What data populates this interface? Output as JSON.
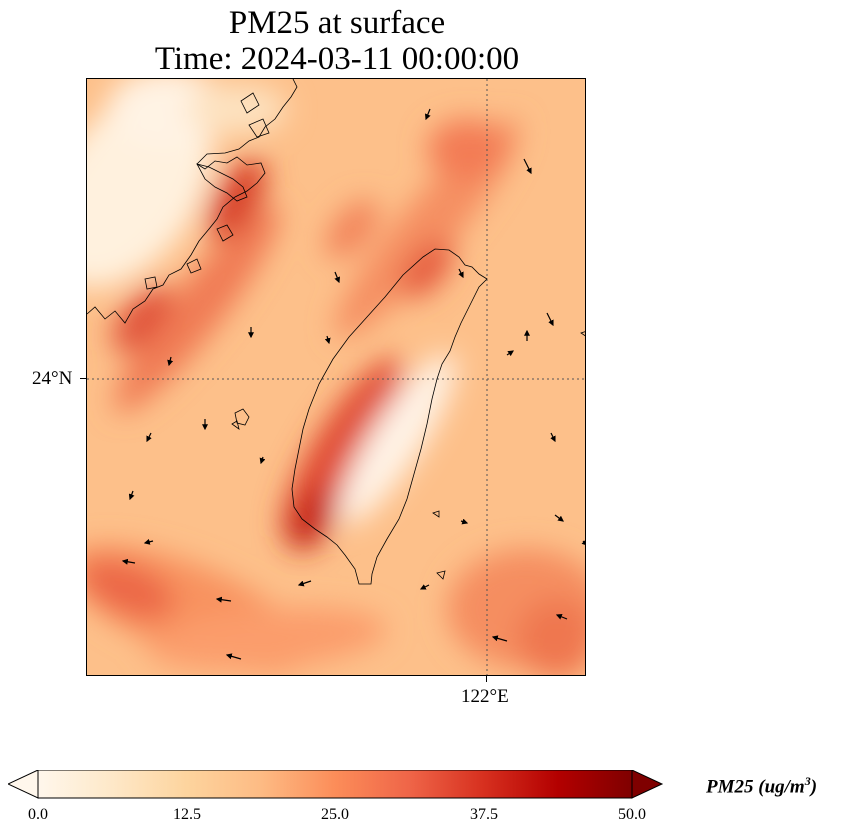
{
  "title": {
    "line1": "PM25 at surface",
    "line2": "Time: 2024-03-11 00:00:00"
  },
  "map": {
    "latitude_label": "24°N",
    "longitude_label": "122°E",
    "gridlines": "dotted",
    "colormap": "OrRd",
    "coastline_color": "#000000",
    "vector_arrow_color": "#000000"
  },
  "colorbar": {
    "label_var": "PM25 (ug/m",
    "label_sup": "3",
    "label_end": ")",
    "ticks": [
      "0.0",
      "12.5",
      "25.0",
      "37.5",
      "50.0"
    ],
    "min": 0,
    "max": 50,
    "extend": "both",
    "colors": [
      "#fff7ec",
      "#fee8c8",
      "#fdd49e",
      "#fdbb84",
      "#fc8d59",
      "#ef6548",
      "#d7301f",
      "#b30000",
      "#7f0000"
    ]
  }
}
